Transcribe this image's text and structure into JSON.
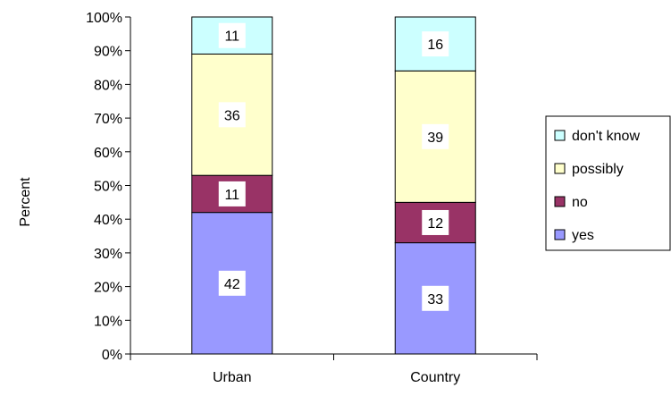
{
  "chart_data": {
    "type": "bar",
    "stacked": true,
    "percent_stacked": true,
    "categories": [
      "Urban",
      "Country"
    ],
    "series": [
      {
        "name": "yes",
        "values": [
          42,
          33
        ],
        "color": "#9999ff"
      },
      {
        "name": "no",
        "values": [
          11,
          12
        ],
        "color": "#993366"
      },
      {
        "name": "possibly",
        "values": [
          36,
          39
        ],
        "color": "#ffffcc"
      },
      {
        "name": "don't know",
        "values": [
          11,
          16
        ],
        "color": "#ccffff"
      }
    ],
    "ylabel": "Percent",
    "ylim": [
      0,
      100
    ],
    "yticks": [
      "0%",
      "10%",
      "20%",
      "30%",
      "40%",
      "50%",
      "60%",
      "70%",
      "80%",
      "90%",
      "100%"
    ],
    "grid": false,
    "legend_position": "right",
    "legend_order": [
      "don't know",
      "possibly",
      "no",
      "yes"
    ]
  }
}
